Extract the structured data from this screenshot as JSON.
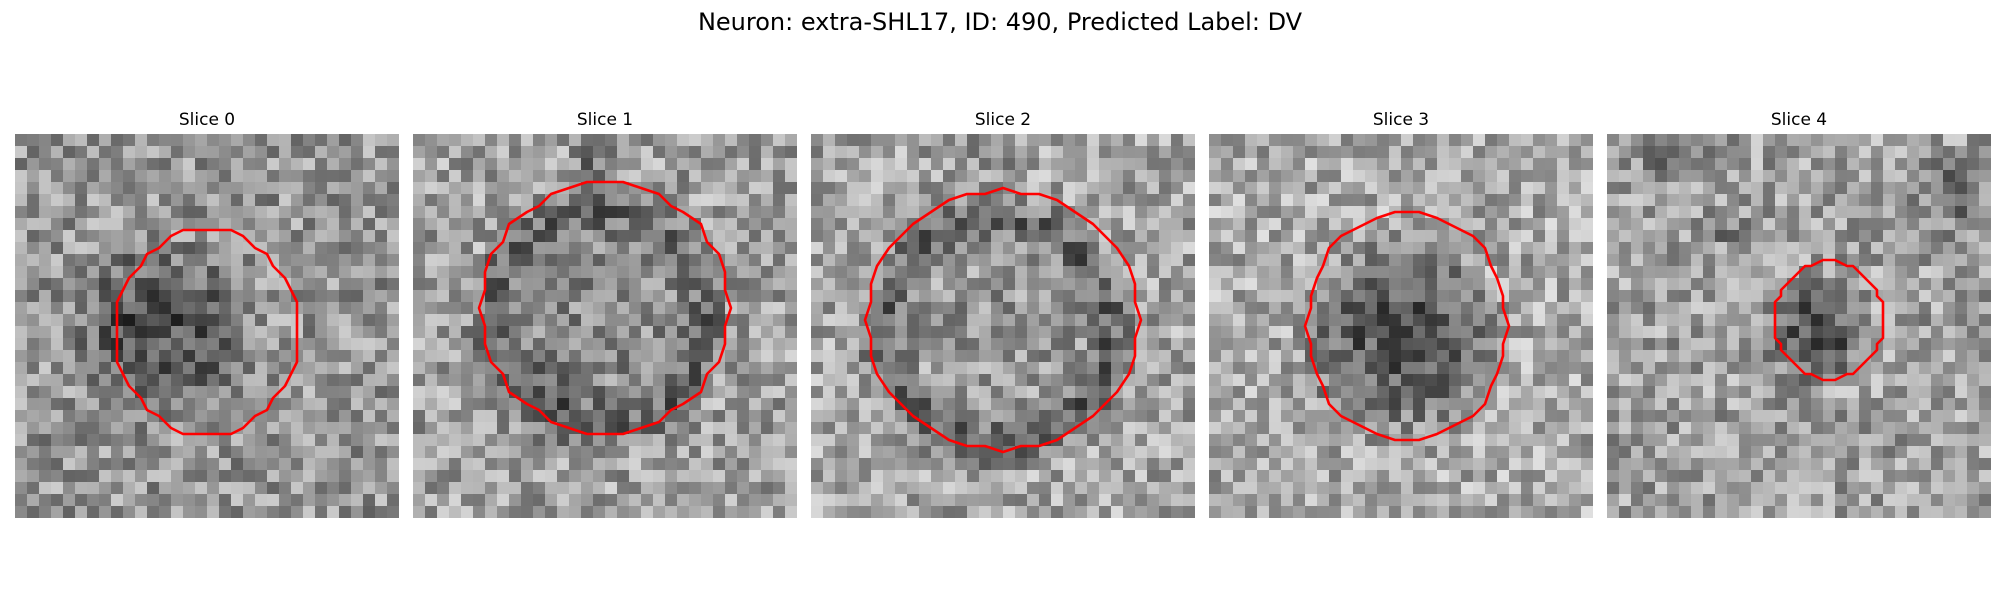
{
  "figure": {
    "title": "Neuron: extra-SHL17, ID: 490, Predicted Label: DV",
    "contour_color": "#ff0000",
    "colormap": "gray",
    "panels": [
      {
        "title": "Slice 0",
        "contour": "roi-outline"
      },
      {
        "title": "Slice 1",
        "contour": "roi-outline"
      },
      {
        "title": "Slice 2",
        "contour": "roi-outline"
      },
      {
        "title": "Slice 3",
        "contour": "roi-outline"
      },
      {
        "title": "Slice 4",
        "contour": "roi-outline"
      }
    ]
  }
}
